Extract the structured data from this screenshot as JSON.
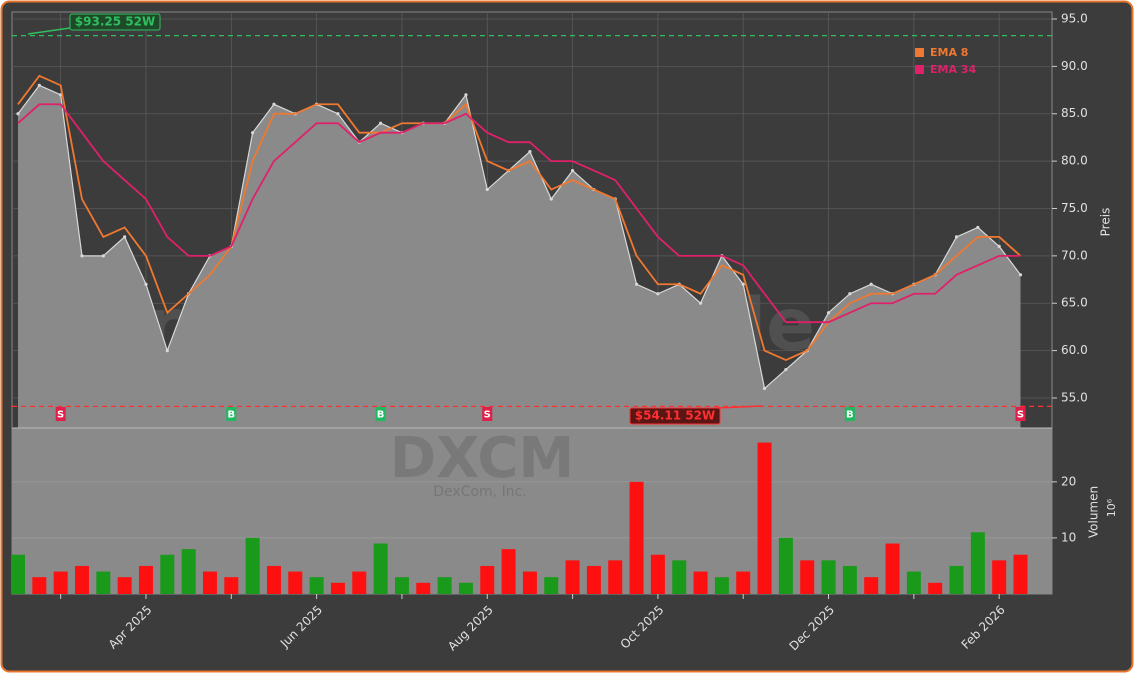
{
  "chart_data": [
    {
      "type": "line",
      "categories": [
        null,
        null,
        null,
        null,
        null,
        null,
        "Apr 2025",
        null,
        null,
        null,
        null,
        null,
        null,
        null,
        "Jun 2025",
        null,
        null,
        null,
        null,
        null,
        null,
        null,
        "Aug 2025",
        null,
        null,
        null,
        null,
        null,
        null,
        null,
        "Oct 2025",
        null,
        null,
        null,
        null,
        null,
        null,
        null,
        "Dec 2025",
        null,
        null,
        null,
        null,
        null,
        null,
        null,
        "Feb 2026",
        null
      ],
      "values": [
        85,
        88,
        87,
        70,
        70,
        72,
        67,
        60,
        66,
        70,
        71,
        83,
        86,
        85,
        86,
        85,
        82,
        84,
        83,
        84,
        84,
        87,
        77,
        79,
        81,
        76,
        79,
        77,
        76,
        67,
        66,
        67,
        65,
        70,
        67,
        56,
        58,
        60,
        64,
        66,
        67,
        66,
        67,
        68,
        72,
        73,
        71,
        68
      ],
      "color": "#d8d8d8",
      "series": [
        {
          "name": "EMA 8",
          "color": "#f07830",
          "values": [
            86,
            89,
            88,
            76,
            72,
            73,
            70,
            64,
            66,
            68,
            71,
            80,
            85,
            85,
            86,
            86,
            83,
            83,
            84,
            84,
            84,
            86,
            80,
            79,
            80,
            77,
            78,
            77,
            76,
            70,
            67,
            67,
            66,
            69,
            68,
            60,
            59,
            60,
            63,
            65,
            66,
            66,
            67,
            68,
            70,
            72,
            72,
            70
          ]
        },
        {
          "name": "EMA 34",
          "color": "#e0206a",
          "values": [
            84,
            86,
            86,
            83,
            80,
            78,
            76,
            72,
            70,
            70,
            71,
            76,
            80,
            82,
            84,
            84,
            82,
            83,
            83,
            84,
            84,
            85,
            83,
            82,
            82,
            80,
            80,
            79,
            78,
            75,
            72,
            70,
            70,
            70,
            69,
            66,
            63,
            63,
            63,
            64,
            65,
            65,
            66,
            66,
            68,
            69,
            70,
            70
          ]
        }
      ],
      "signals": [
        null,
        null,
        "S",
        null,
        null,
        null,
        null,
        null,
        null,
        null,
        "B",
        null,
        null,
        null,
        null,
        null,
        null,
        "B",
        null,
        null,
        null,
        null,
        "S",
        null,
        null,
        null,
        null,
        null,
        null,
        null,
        null,
        null,
        null,
        null,
        null,
        null,
        null,
        null,
        null,
        "B",
        null,
        null,
        null,
        null,
        null,
        null,
        null,
        "S"
      ],
      "annotations": [
        {
          "label": "$93.25 52W",
          "value": 93.25,
          "color": "#2fbf5f"
        },
        {
          "label": "$54.11 52W",
          "value": 54.11,
          "color": "#ff3030"
        }
      ],
      "ylabel": "Preis",
      "ylim": [
        51.83,
        95.74
      ],
      "yticks": [
        {
          "value": 55,
          "label": "55.0"
        },
        {
          "value": 60,
          "label": "60.0"
        },
        {
          "value": 65,
          "label": "65.0"
        },
        {
          "value": 70,
          "label": "70.0"
        },
        {
          "value": 75,
          "label": "75.0"
        },
        {
          "value": 80,
          "label": "80.0"
        },
        {
          "value": 85,
          "label": "85.0"
        },
        {
          "value": 90,
          "label": "90.0"
        },
        {
          "value": 95,
          "label": "95.0"
        }
      ],
      "grid": true,
      "legend": "upper right",
      "watermark": "forexsignale.trade"
    },
    {
      "type": "bar",
      "values": [
        7,
        3,
        4,
        5,
        4,
        3,
        5,
        7,
        8,
        4,
        3,
        10,
        5,
        4,
        3,
        2,
        4,
        9,
        3,
        2,
        3,
        2,
        5,
        8,
        4,
        3,
        6,
        5,
        6,
        20,
        7,
        6,
        4,
        3,
        4,
        27,
        10,
        6,
        6,
        5,
        3,
        9,
        4,
        2,
        5,
        11,
        6,
        7
      ],
      "colors": [
        "#1a9a1a",
        "#ff1010",
        "#ff1010",
        "#ff1010",
        "#1a9a1a",
        "#ff1010",
        "#ff1010",
        "#1a9a1a",
        "#1a9a1a",
        "#ff1010",
        "#ff1010",
        "#1a9a1a",
        "#ff1010",
        "#ff1010",
        "#1a9a1a",
        "#ff1010",
        "#ff1010",
        "#1a9a1a",
        "#1a9a1a",
        "#ff1010",
        "#1a9a1a",
        "#1a9a1a",
        "#ff1010",
        "#ff1010",
        "#ff1010",
        "#1a9a1a",
        "#ff1010",
        "#ff1010",
        "#ff1010",
        "#ff1010",
        "#ff1010",
        "#1a9a1a",
        "#ff1010",
        "#1a9a1a",
        "#ff1010",
        "#ff1010",
        "#1a9a1a",
        "#ff1010",
        "#1a9a1a",
        "#1a9a1a",
        "#ff1010",
        "#ff1010",
        "#1a9a1a",
        "#ff1010",
        "#1a9a1a",
        "#1a9a1a",
        "#ff1010",
        "#ff1010"
      ],
      "ylabel": "Volumen",
      "yunit": "10⁶",
      "ylim": [
        0,
        29.6
      ],
      "yticks": [
        10,
        20
      ],
      "watermark": "DXCM",
      "subtitle": "DexCom, Inc."
    }
  ]
}
